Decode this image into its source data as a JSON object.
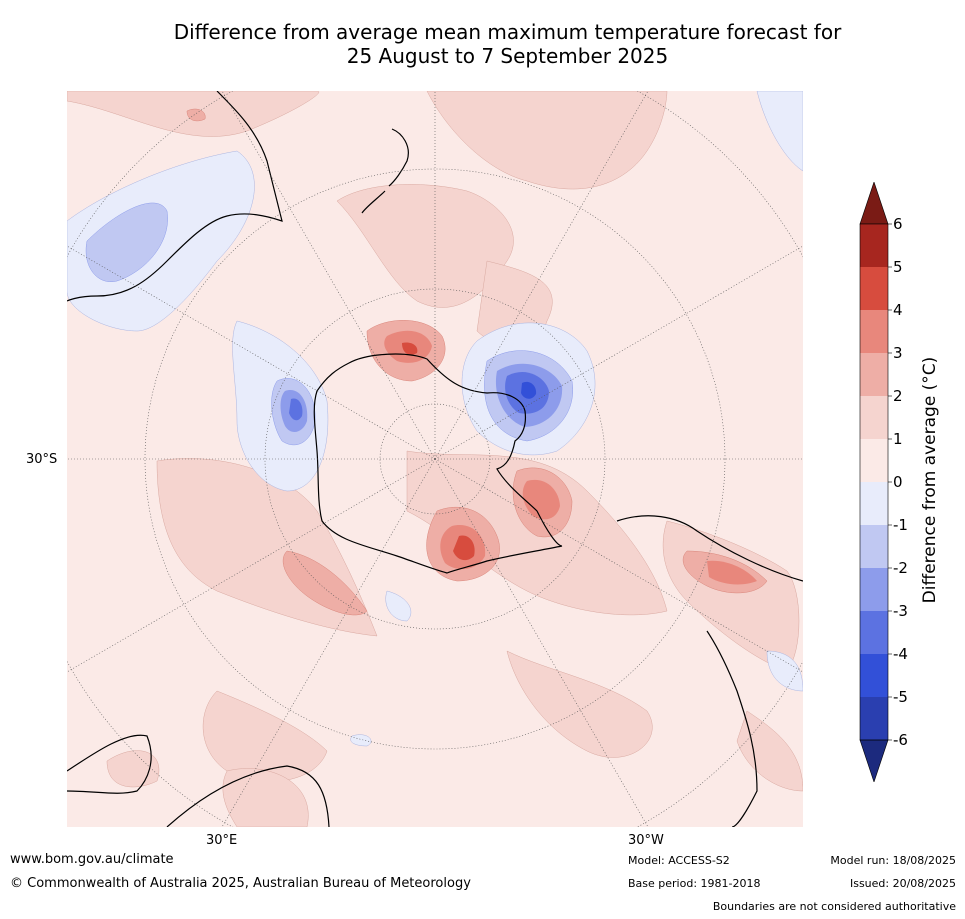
{
  "title": {
    "line1": "Difference from average mean maximum temperature forecast for",
    "line2": "25 August to 7 September 2025"
  },
  "map": {
    "projection": "south-polar-stereographic",
    "lat_label": "30°S",
    "lon_labels": [
      "30°E",
      "30°W"
    ]
  },
  "colorbar": {
    "title": "Difference from average (°C)",
    "ticks": [
      "6",
      "5",
      "4",
      "3",
      "2",
      "1",
      "0",
      "-1",
      "-2",
      "-3",
      "-4",
      "-5",
      "-6"
    ],
    "colors": {
      "above_6": "#7a1b15",
      "5_to_6": "#a7261f",
      "4_to_5": "#d74c3e",
      "3_to_4": "#e8877c",
      "2_to_3": "#eeaea6",
      "1_to_2": "#f5d4cf",
      "0_to_1": "#fbeae7",
      "m1_to_0": "#e8ecfb",
      "m2_to_m1": "#c0c8f2",
      "m3_to_m2": "#8d9ceb",
      "m4_to_m3": "#5c72e1",
      "m5_to_m4": "#3250d8",
      "m6_to_m5": "#2a3fb0",
      "below_m6": "#1c2a7e"
    }
  },
  "footer": {
    "website": "www.bom.gov.au/climate",
    "copyright": "© Commonwealth of Australia 2025, Australian Bureau of Meteorology",
    "model": "Model: ACCESS-S2",
    "base_period": "Base period: 1981-2018",
    "model_run": "Model run: 18/08/2025",
    "issued": "Issued: 20/08/2025",
    "disclaimer": "Boundaries are not considered authoritative"
  }
}
